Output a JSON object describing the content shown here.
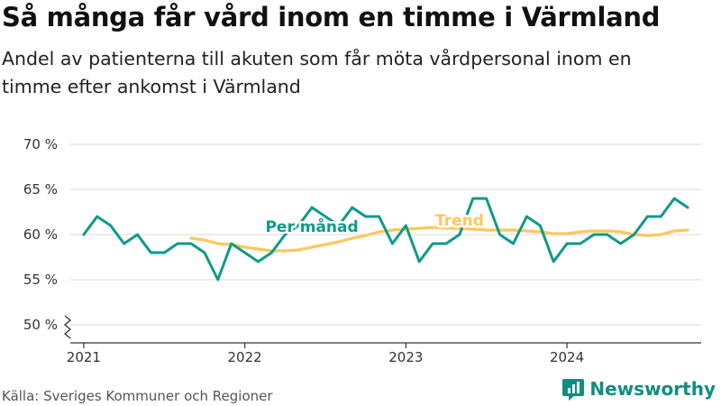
{
  "title": "Så många får vård inom en timme i Värmland",
  "subtitle": "Andel av patienterna till akuten som får möta vårdpersonal inom en timme efter ankomst i Värmland",
  "source": "Källa: Sveriges Kommuner och Regioner",
  "brand": {
    "name": "Newsworthy",
    "icon": "newsworthy-logo-icon"
  },
  "colors": {
    "monthly": "#0e9a89",
    "trend": "#fcc75d",
    "grid": "#d9d9d9",
    "axis": "#333333",
    "text": "#333333"
  },
  "chart_data": {
    "type": "line",
    "y_ticks": [
      "70 %",
      "65 %",
      "60 %",
      "55 %",
      "50 %"
    ],
    "y_tick_values": [
      70,
      65,
      60,
      55,
      50
    ],
    "ylim": [
      48,
      71
    ],
    "y_axis_break": true,
    "x_ticks": [
      "2021",
      "2022",
      "2023",
      "2024"
    ],
    "x_tick_values": [
      "2021-01",
      "2022-01",
      "2023-01",
      "2024-01"
    ],
    "xlim": [
      "2020-12",
      "2024-11"
    ],
    "grid": true,
    "series": [
      {
        "name": "Per månad",
        "x": [
          "2021-01",
          "2021-02",
          "2021-03",
          "2021-04",
          "2021-05",
          "2021-06",
          "2021-07",
          "2021-08",
          "2021-09",
          "2021-10",
          "2021-11",
          "2021-12",
          "2022-01",
          "2022-02",
          "2022-03",
          "2022-04",
          "2022-05",
          "2022-06",
          "2022-07",
          "2022-08",
          "2022-09",
          "2022-10",
          "2022-11",
          "2022-12",
          "2023-01",
          "2023-02",
          "2023-03",
          "2023-04",
          "2023-05",
          "2023-06",
          "2023-07",
          "2023-08",
          "2023-09",
          "2023-10",
          "2023-11",
          "2023-12",
          "2024-01",
          "2024-02",
          "2024-03",
          "2024-04",
          "2024-05",
          "2024-06",
          "2024-07",
          "2024-08",
          "2024-09",
          "2024-10"
        ],
        "values": [
          60,
          62,
          61,
          59,
          60,
          58,
          58,
          59,
          59,
          58,
          55,
          59,
          58,
          57,
          58,
          60,
          61,
          63,
          62,
          61,
          63,
          62,
          62,
          59,
          61,
          57,
          59,
          59,
          60,
          64,
          64,
          60,
          59,
          62,
          61,
          57,
          59,
          59,
          60,
          60,
          59,
          60,
          62,
          62,
          64,
          63
        ]
      },
      {
        "name": "Trend",
        "x": [
          "2021-09",
          "2021-10",
          "2021-11",
          "2021-12",
          "2022-01",
          "2022-02",
          "2022-03",
          "2022-04",
          "2022-05",
          "2022-06",
          "2022-07",
          "2022-08",
          "2022-09",
          "2022-10",
          "2022-11",
          "2022-12",
          "2023-01",
          "2023-02",
          "2023-03",
          "2023-04",
          "2023-05",
          "2023-06",
          "2023-07",
          "2023-08",
          "2023-09",
          "2023-10",
          "2023-11",
          "2023-12",
          "2024-01",
          "2024-02",
          "2024-03",
          "2024-04",
          "2024-05",
          "2024-06",
          "2024-07",
          "2024-08",
          "2024-09",
          "2024-10"
        ],
        "values": [
          59.6,
          59.4,
          59.0,
          58.9,
          58.6,
          58.4,
          58.2,
          58.2,
          58.3,
          58.6,
          58.9,
          59.2,
          59.6,
          59.9,
          60.3,
          60.5,
          60.6,
          60.7,
          60.8,
          60.7,
          60.7,
          60.6,
          60.5,
          60.5,
          60.5,
          60.4,
          60.3,
          60.1,
          60.1,
          60.3,
          60.4,
          60.4,
          60.3,
          60.0,
          59.9,
          60.0,
          60.4,
          60.5
        ]
      }
    ],
    "labels": [
      {
        "series": "Per månad",
        "text": "Per månad",
        "at_x": "2022-06",
        "at_y": 60.3
      },
      {
        "series": "Trend",
        "text": "Trend",
        "at_x": "2023-05",
        "at_y": 61.0
      }
    ]
  }
}
